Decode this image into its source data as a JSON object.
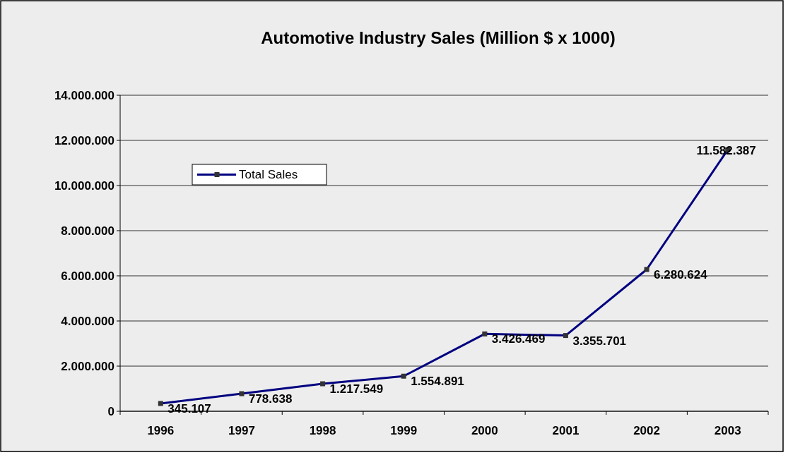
{
  "chart_data": {
    "type": "line",
    "title": "Automotive Industry Sales (Million $ x 1000)",
    "categories": [
      "1996",
      "1997",
      "1998",
      "1999",
      "2000",
      "2001",
      "2002",
      "2003"
    ],
    "series": [
      {
        "name": "Total Sales",
        "color": "#000080",
        "values": [
          345107,
          778638,
          1217549,
          1554891,
          3426469,
          3355701,
          6280624,
          11582387
        ],
        "value_labels": [
          "345.107",
          "778.638",
          "1.217.549",
          "1.554.891",
          "3.426.469",
          "3.355.701",
          "6.280.624",
          "11.582.387"
        ]
      }
    ],
    "ylim": [
      0,
      14000000
    ],
    "yticks": [
      {
        "value": 0,
        "label": "0"
      },
      {
        "value": 2000000,
        "label": "2.000.000"
      },
      {
        "value": 4000000,
        "label": "4.000.000"
      },
      {
        "value": 6000000,
        "label": "6.000.000"
      },
      {
        "value": 8000000,
        "label": "8.000.000"
      },
      {
        "value": 10000000,
        "label": "10.000.000"
      },
      {
        "value": 12000000,
        "label": "12.000.000"
      },
      {
        "value": 14000000,
        "label": "14.000.000"
      }
    ],
    "grid": "y",
    "legend": "top left",
    "marker": "square",
    "line_style": "solid"
  }
}
